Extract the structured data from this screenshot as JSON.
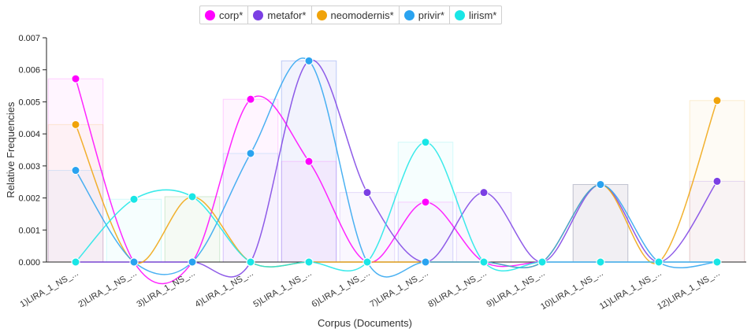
{
  "chart_data": {
    "type": "line",
    "xlabel": "Corpus (Documents)",
    "ylabel": "Relative Frequencies",
    "ylim": [
      0,
      0.007
    ],
    "yticks": [
      "0.000",
      "0.001",
      "0.002",
      "0.003",
      "0.004",
      "0.005",
      "0.006",
      "0.007"
    ],
    "categories": [
      "1)LIRA_1_NS_...",
      "2)LIRA_1_NS_...",
      "3)LIRA_1_NS_...",
      "4)LIRA_1_NS_...",
      "5)LIRA_1_NS_...",
      "6)LIRA_1_NS_...",
      "7)LIRA_1_NS_...",
      "8)LIRA_1_NS_...",
      "9)LIRA_1_NS_...",
      "10)LIRA_1_NS_...",
      "11)LIRA_1_NS_...",
      "12)LIRA_1_NS_..."
    ],
    "series": [
      {
        "name": "corp*",
        "color": "#ff00ff",
        "values": [
          0.00572,
          0.0,
          0.0,
          0.00508,
          0.00314,
          0.0,
          0.00187,
          0.0,
          0.0,
          0.0,
          0.0,
          0.0
        ]
      },
      {
        "name": "metafor*",
        "color": "#7b3fe4",
        "values": [
          0.0,
          0.0,
          0.0,
          0.0,
          0.00628,
          0.00217,
          0.0,
          0.00217,
          0.0,
          0.00242,
          0.0,
          0.00252
        ]
      },
      {
        "name": "neomodernis*",
        "color": "#f0a30a",
        "values": [
          0.00429,
          0.0,
          0.00204,
          0.0,
          0.0,
          0.0,
          0.0,
          0.0,
          0.0,
          0.00242,
          0.0,
          0.00504
        ]
      },
      {
        "name": "privir*",
        "color": "#2aa3f0",
        "values": [
          0.00286,
          0.0,
          0.0,
          0.00339,
          0.00628,
          0.0,
          0.0,
          0.0,
          0.0,
          0.00242,
          0.0,
          0.0
        ]
      },
      {
        "name": "lirism*",
        "color": "#19e6e6",
        "values": [
          0.0,
          0.00196,
          0.00204,
          0.0,
          0.0,
          0.0,
          0.00374,
          0.0,
          0.0,
          0.0,
          0.0,
          0.0
        ]
      }
    ]
  }
}
